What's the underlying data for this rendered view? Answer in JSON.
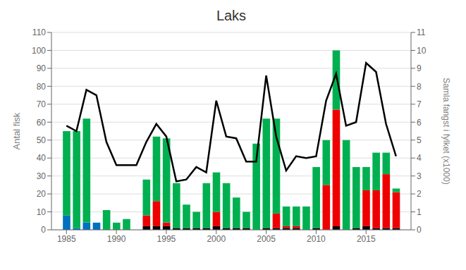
{
  "chart_data": {
    "type": "bar",
    "title": "Laks",
    "stacked": true,
    "grid": true,
    "ylabel": "Antal fisk",
    "y2label": "Samla fangst i fylket (x1000)",
    "x": [
      1985,
      1986,
      1987,
      1988,
      1989,
      1990,
      1991,
      1992,
      1993,
      1994,
      1995,
      1996,
      1997,
      1998,
      1999,
      2000,
      2001,
      2002,
      2003,
      2004,
      2005,
      2006,
      2007,
      2008,
      2009,
      2010,
      2011,
      2012,
      2013,
      2014,
      2015,
      2016,
      2017,
      2018
    ],
    "xlim": [
      1983.5,
      2019.5
    ],
    "xticks": [
      1985,
      1990,
      1995,
      2000,
      2005,
      2010,
      2015
    ],
    "ylim": [
      0,
      110
    ],
    "yticks": [
      0,
      10,
      20,
      30,
      40,
      50,
      60,
      70,
      80,
      90,
      100,
      110
    ],
    "y2lim": [
      0,
      11
    ],
    "y2ticks": [
      0,
      1,
      2,
      3,
      4,
      5,
      6,
      7,
      8,
      9,
      10,
      11
    ],
    "series": [
      {
        "type": "bar",
        "color": "#000000",
        "values": [
          0,
          0,
          0,
          0,
          0,
          0,
          0,
          0,
          2,
          2,
          2,
          1,
          1,
          1,
          1,
          2,
          1,
          1,
          1,
          0,
          1,
          1,
          1,
          1,
          0,
          1,
          0,
          2,
          0,
          1,
          2,
          1,
          1,
          1
        ]
      },
      {
        "type": "bar",
        "color": "#0070c0",
        "values": [
          8,
          1,
          4,
          4,
          0,
          0,
          0,
          0,
          0,
          0,
          0,
          0,
          0,
          0,
          0,
          0,
          0,
          0,
          0,
          0,
          0,
          0,
          0,
          0,
          0,
          0,
          0,
          0,
          0,
          0,
          0,
          0,
          0,
          0
        ]
      },
      {
        "type": "bar",
        "color": "#ee0000",
        "values": [
          0,
          0,
          0,
          0,
          0,
          0,
          0,
          0,
          6,
          14,
          2,
          0,
          0,
          0,
          0,
          8,
          0,
          0,
          0,
          0,
          0,
          8,
          1,
          1,
          0,
          0,
          25,
          65,
          0,
          0,
          20,
          21,
          30,
          20
        ]
      },
      {
        "type": "bar",
        "color": "#00b050",
        "values": [
          47,
          54,
          58,
          0,
          11,
          4,
          6,
          0,
          20,
          36,
          47,
          25,
          13,
          9,
          25,
          22,
          25,
          17,
          9,
          48,
          61,
          53,
          11,
          11,
          13,
          34,
          25,
          33,
          50,
          34,
          13,
          21,
          12,
          2
        ]
      },
      {
        "type": "line",
        "axis": "y2",
        "color": "#000000",
        "values": [
          5.8,
          5.5,
          7.8,
          7.5,
          4.9,
          3.6,
          3.6,
          3.6,
          4.9,
          5.9,
          5.2,
          2.7,
          2.8,
          3.5,
          3.2,
          7.2,
          5.2,
          5.1,
          3.8,
          3.8,
          8.6,
          5.2,
          3.3,
          4.1,
          4.0,
          4.1,
          7.2,
          8.7,
          5.8,
          6.0,
          9.3,
          8.8,
          5.9,
          4.1
        ]
      }
    ]
  }
}
